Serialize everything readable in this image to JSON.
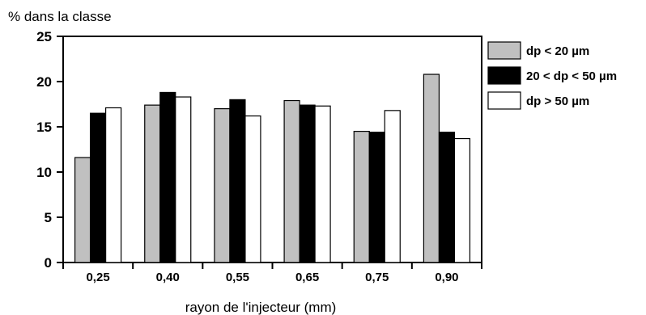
{
  "chart_data": {
    "type": "bar",
    "title": "",
    "ylabel": "% dans la classe",
    "xlabel": "rayon de l'injecteur (mm)",
    "ylim": [
      0,
      25
    ],
    "yticks": [
      0,
      5,
      10,
      15,
      20,
      25
    ],
    "categories": [
      "0,25",
      "0,40",
      "0,55",
      "0,65",
      "0,75",
      "0,90"
    ],
    "grid": false,
    "legend_position": "right",
    "series": [
      {
        "name": "dp < 20 µm",
        "color": "#c0c0c0",
        "values": [
          11.6,
          17.4,
          17.0,
          17.9,
          14.5,
          20.8
        ]
      },
      {
        "name": "20 < dp < 50 µm",
        "color": "#000000",
        "values": [
          16.5,
          18.8,
          18.0,
          17.4,
          14.4,
          14.4
        ]
      },
      {
        "name": "dp > 50 µm",
        "color": "#ffffff",
        "values": [
          17.1,
          18.3,
          16.2,
          17.3,
          16.8,
          13.7
        ]
      }
    ]
  }
}
